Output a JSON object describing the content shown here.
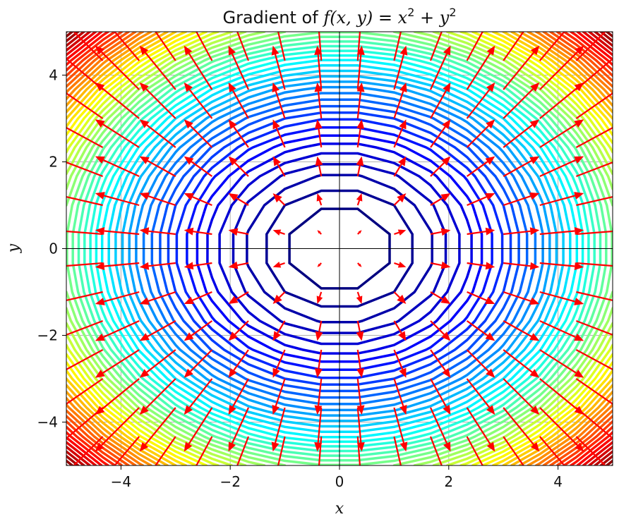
{
  "chart_data": {
    "type": "contour",
    "title": "Gradient of f(x, y) = x² + y²",
    "title_parts": {
      "prefix": "Gradient of ",
      "f": "f",
      "args": "(x, y)",
      "eq": " = ",
      "x": "x",
      "plus": " + ",
      "y": "y",
      "exp": "2"
    },
    "function": "f(x, y) = x^2 + y^2",
    "gradient": "(2x, 2y)",
    "xlabel": "x",
    "ylabel": "y",
    "xlim": [
      -5,
      5
    ],
    "ylim": [
      -5,
      5
    ],
    "xticks": [
      -4,
      -2,
      0,
      2,
      4
    ],
    "yticks": [
      -4,
      -2,
      0,
      2,
      4
    ],
    "xtick_labels": [
      "−4",
      "−2",
      "0",
      "2",
      "4"
    ],
    "ytick_labels": [
      "−4",
      "−2",
      "0",
      "2",
      "4"
    ],
    "grid": true,
    "colormap": "jet",
    "contour_levels": {
      "start": 1,
      "stop": 50,
      "step": 1
    },
    "contour_grid": {
      "x": [
        -5,
        5,
        16
      ],
      "y": [
        -5,
        5,
        16
      ]
    },
    "quiver": {
      "x_range": [
        -5,
        5
      ],
      "y_range": [
        -5,
        5
      ],
      "n": 16,
      "color": "#ff0000"
    },
    "axes_lines": {
      "x": 0,
      "y": 0
    },
    "colors": {
      "jet_low": "#00007f",
      "jet_mid": "#7fff7f",
      "jet_high": "#7f0000",
      "arrow": "#ff0000",
      "grid": "#b0b0b0",
      "axis_line": "#000000"
    }
  }
}
